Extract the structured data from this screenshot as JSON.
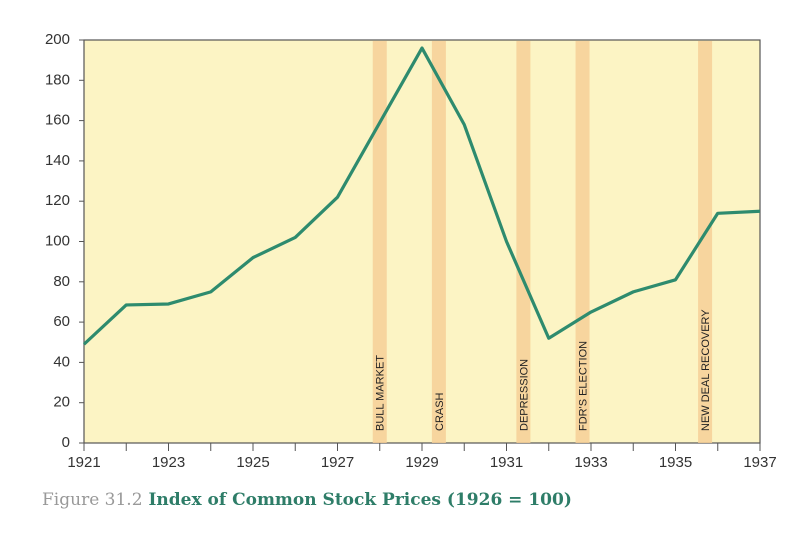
{
  "chart_data": {
    "type": "line",
    "caption_label": "Figure 31.2",
    "title": "Index of Common Stock Prices (1926 = 100)",
    "x": [
      1921,
      1922,
      1923,
      1924,
      1925,
      1926,
      1927,
      1928,
      1929,
      1930,
      1931,
      1932,
      1933,
      1934,
      1935,
      1936,
      1937
    ],
    "series": [
      {
        "color": "#2e8b6e",
        "values": [
          49,
          68.5,
          69,
          75,
          92,
          102,
          122,
          159,
          196,
          158,
          100,
          52,
          65,
          75,
          81,
          114,
          115
        ]
      }
    ],
    "xlim": [
      1921,
      1937
    ],
    "xticks": [
      1921,
      1923,
      1925,
      1927,
      1929,
      1931,
      1933,
      1935,
      1937
    ],
    "ylim": [
      0,
      200
    ],
    "yticks": [
      0,
      20,
      40,
      60,
      80,
      100,
      120,
      140,
      160,
      180,
      200
    ],
    "annotations": [
      {
        "text": "BULL MARKET",
        "x": 1928.0
      },
      {
        "text": "CRASH",
        "x": 1929.4
      },
      {
        "text": "DEPRESSION",
        "x": 1931.4
      },
      {
        "text": "FDR'S ELECTION",
        "x": 1932.8
      },
      {
        "text": "NEW DEAL RECOVERY",
        "x": 1935.7
      }
    ]
  }
}
